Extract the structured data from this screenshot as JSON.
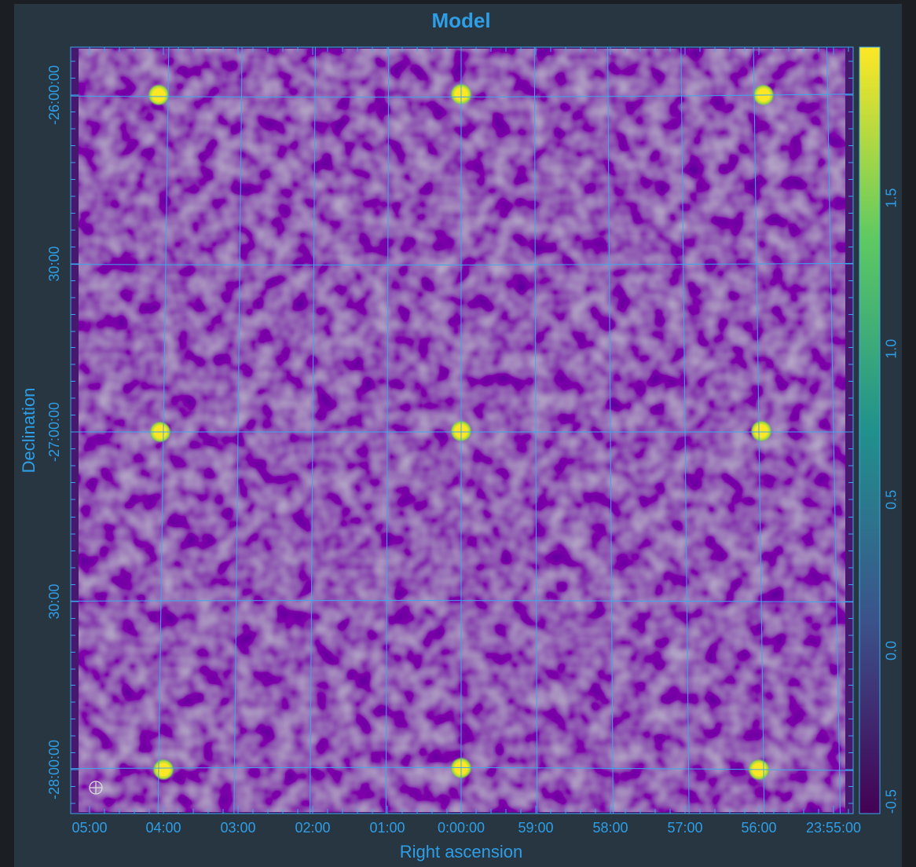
{
  "title": "Model",
  "x_axis": {
    "label": "Right ascension",
    "ticks": [
      "05:00",
      "04:00",
      "03:00",
      "02:00",
      "01:00",
      "0:00:00",
      "59:00",
      "58:00",
      "57:00",
      "56:00",
      "23:55:00"
    ]
  },
  "y_axis": {
    "label": "Declination",
    "ticks": [
      "-26:00:00",
      "30:00",
      "-27:00:00",
      "30:00",
      "-28:00:00"
    ]
  },
  "colorbar": {
    "range": [
      -0.54,
      2.0
    ],
    "ticks": [
      1.5,
      {
        "value": 1,
        "label": "1.0"
      },
      0.5,
      {
        "value": 0,
        "label": "0.0"
      },
      -0.5
    ]
  }
}
